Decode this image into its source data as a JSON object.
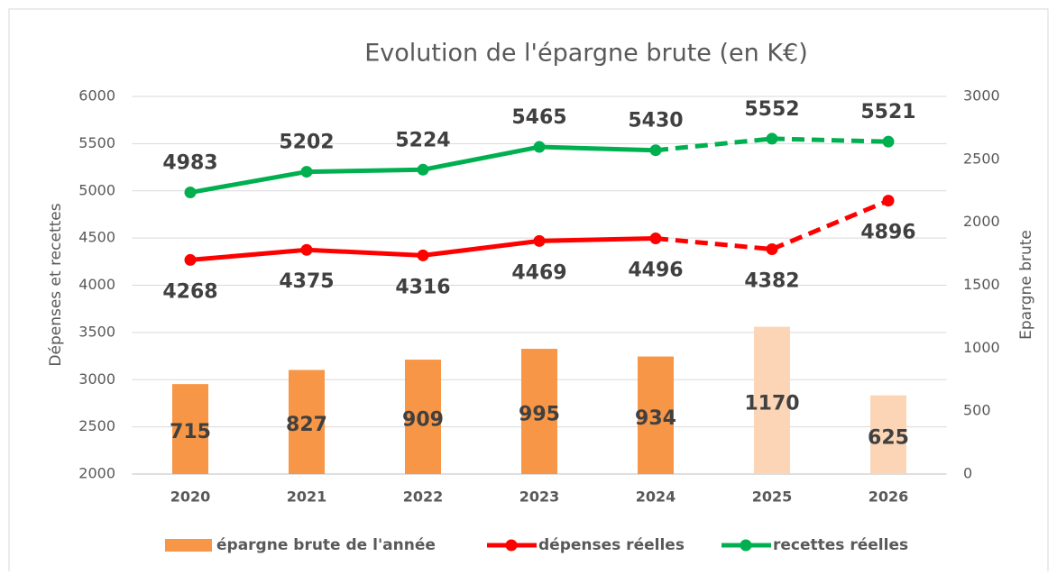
{
  "chart_data": {
    "type": "combo",
    "title": "Evolution de l'épargne brute (en K€)",
    "y_label": "Dépenses et recettes",
    "y2_label": "Epargne brute",
    "categories": [
      "2020",
      "2021",
      "2022",
      "2023",
      "2024",
      "2025",
      "2026"
    ],
    "series": [
      {
        "name": "épargne brute de l'année",
        "type": "bar",
        "axis": "y2",
        "color": "#f79646",
        "colors": [
          "#f79646",
          "#f79646",
          "#f79646",
          "#f79646",
          "#f79646",
          "#fbd5b5",
          "#fbd5b5"
        ],
        "values": [
          715,
          827,
          909,
          995,
          934,
          1170,
          625
        ]
      },
      {
        "name": "dépenses réelles",
        "type": "line",
        "color": "#ff0000",
        "dashed": [
          false,
          false,
          false,
          false,
          false,
          true,
          true
        ],
        "values": [
          4268,
          4375,
          4316,
          4469,
          4496,
          4382,
          4896
        ]
      },
      {
        "name": "recettes réelles",
        "type": "line",
        "color": "#00b050",
        "dashed": [
          false,
          false,
          false,
          false,
          false,
          true,
          true
        ],
        "values": [
          4983,
          5202,
          5224,
          5465,
          5430,
          5552,
          5521
        ]
      }
    ],
    "ylim": [
      2000,
      6000
    ],
    "yticks": [
      2000,
      2500,
      3000,
      3500,
      4000,
      4500,
      5000,
      5500,
      6000
    ],
    "y2lim": [
      0,
      3000
    ],
    "y2ticks": [
      0,
      500,
      1000,
      1500,
      2000,
      2500,
      3000
    ],
    "grid": true,
    "legend": "bottom"
  }
}
